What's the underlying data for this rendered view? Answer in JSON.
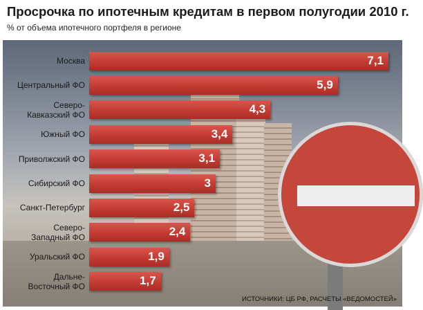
{
  "title": "Просрочка по ипотечным кредитам в первом полугодии 2010 г.",
  "subtitle": "% от объема ипотечного портфеля в регионе",
  "source": "ИСТОЧНИКИ: ЦБ РФ, РАСЧЕТЫ «ВЕДОМОСТЕЙ»",
  "chart_data": {
    "type": "bar",
    "orientation": "horizontal",
    "title": "Просрочка по ипотечным кредитам в первом полугодии 2010 г.",
    "subtitle": "% от объема ипотечного портфеля в регионе",
    "categories": [
      "Москва",
      "Центральный ФО",
      "Северо-\nКавказский ФО",
      "Южный ФО",
      "Приволжский ФО",
      "Сибирский ФО",
      "Санкт-Петербург",
      "Северо-\nЗападный ФО",
      "Уральский ФО",
      "Дальне-\nВосточный ФО"
    ],
    "values": [
      7.1,
      5.9,
      4.3,
      3.4,
      3.1,
      3,
      2.5,
      2.4,
      1.9,
      1.7
    ],
    "value_labels": [
      "7,1",
      "5,9",
      "4,3",
      "3,4",
      "3,1",
      "3",
      "2,5",
      "2,4",
      "1,9",
      "1,7"
    ],
    "xlim": [
      0,
      7.1
    ],
    "grid": false,
    "legend": "none",
    "bar_color": "#c33c33"
  }
}
